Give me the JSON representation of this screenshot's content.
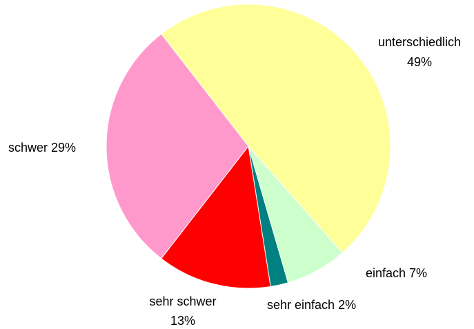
{
  "chart_data": {
    "type": "pie",
    "categories": [
      "unterschiedlich",
      "einfach",
      "sehr einfach",
      "sehr schwer",
      "schwer"
    ],
    "values": [
      49,
      7,
      2,
      13,
      29
    ],
    "value_labels": [
      "49%",
      "7%",
      "2%",
      "13%",
      "29%"
    ],
    "colors": [
      "#ffff99",
      "#ccffcc",
      "#008080",
      "#ff0000",
      "#ff99cc"
    ]
  }
}
